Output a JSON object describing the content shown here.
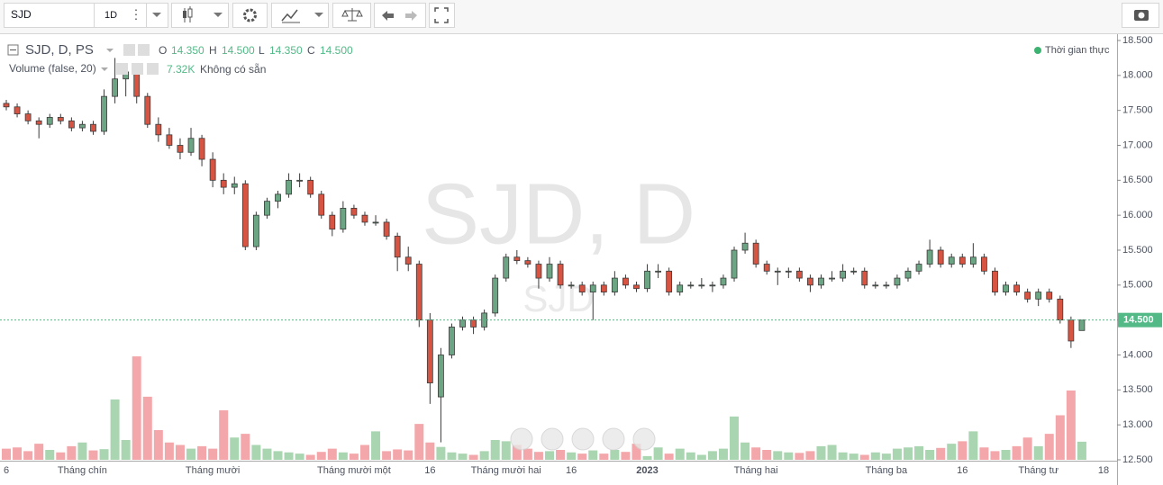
{
  "toolbar": {
    "symbol": "SJD",
    "interval": "1D"
  },
  "legend": {
    "series": "SJD, D, PS",
    "o_label": "O",
    "o": "14.350",
    "h_label": "H",
    "h": "14.500",
    "l_label": "L",
    "l": "14.350",
    "c_label": "C",
    "c": "14.500",
    "volume_title": "Volume (false, 20)",
    "volume_value": "7.32K",
    "volume_ma": "Không có sẵn",
    "realtime": "Thời gian thực"
  },
  "watermark": {
    "main": "SJD, D",
    "small": "SJD"
  },
  "chart_data": {
    "type": "candlestick",
    "categories": [
      "6",
      null,
      null,
      null,
      null,
      null,
      null,
      "Tháng chín",
      null,
      null,
      null,
      null,
      null,
      null,
      null,
      null,
      null,
      null,
      null,
      "Tháng mười",
      null,
      null,
      null,
      null,
      null,
      null,
      null,
      null,
      null,
      null,
      null,
      null,
      "Tháng mười một",
      null,
      null,
      null,
      null,
      null,
      null,
      "16",
      null,
      null,
      null,
      null,
      null,
      null,
      "Tháng mười hai",
      null,
      null,
      null,
      null,
      null,
      "16",
      null,
      null,
      null,
      null,
      null,
      null,
      "2023",
      null,
      null,
      null,
      null,
      null,
      null,
      null,
      null,
      null,
      "Tháng hai",
      null,
      null,
      null,
      null,
      null,
      null,
      null,
      null,
      null,
      null,
      null,
      "Tháng ba",
      null,
      null,
      null,
      null,
      null,
      null,
      "16",
      null,
      null,
      null,
      null,
      null,
      null,
      "Tháng tư",
      null,
      null,
      null,
      null,
      null,
      "18"
    ],
    "ohlc": [
      [
        17.6,
        17.65,
        17.5,
        17.55
      ],
      [
        17.55,
        17.6,
        17.4,
        17.45
      ],
      [
        17.45,
        17.5,
        17.3,
        17.35
      ],
      [
        17.35,
        17.4,
        17.1,
        17.3
      ],
      [
        17.3,
        17.45,
        17.25,
        17.4
      ],
      [
        17.4,
        17.45,
        17.3,
        17.35
      ],
      [
        17.35,
        17.4,
        17.2,
        17.25
      ],
      [
        17.25,
        17.35,
        17.2,
        17.3
      ],
      [
        17.3,
        17.35,
        17.15,
        17.2
      ],
      [
        17.2,
        17.8,
        17.15,
        17.7
      ],
      [
        17.7,
        18.25,
        17.6,
        17.95
      ],
      [
        17.95,
        18.15,
        17.7,
        18.05
      ],
      [
        18.05,
        18.1,
        17.6,
        17.7
      ],
      [
        17.7,
        17.75,
        17.25,
        17.3
      ],
      [
        17.3,
        17.4,
        17.05,
        17.15
      ],
      [
        17.15,
        17.25,
        16.95,
        17.0
      ],
      [
        17.0,
        17.1,
        16.8,
        16.9
      ],
      [
        16.9,
        17.25,
        16.85,
        17.1
      ],
      [
        17.1,
        17.15,
        16.7,
        16.8
      ],
      [
        16.8,
        16.9,
        16.4,
        16.5
      ],
      [
        16.5,
        16.6,
        16.3,
        16.4
      ],
      [
        16.4,
        16.55,
        16.3,
        16.45
      ],
      [
        16.45,
        16.5,
        15.5,
        15.55
      ],
      [
        15.55,
        16.05,
        15.5,
        16.0
      ],
      [
        16.0,
        16.25,
        15.95,
        16.2
      ],
      [
        16.2,
        16.35,
        16.1,
        16.3
      ],
      [
        16.3,
        16.6,
        16.25,
        16.5
      ],
      [
        16.5,
        16.6,
        16.4,
        16.5
      ],
      [
        16.5,
        16.55,
        16.25,
        16.3
      ],
      [
        16.3,
        16.35,
        15.95,
        16.0
      ],
      [
        16.0,
        16.05,
        15.7,
        15.8
      ],
      [
        15.8,
        16.2,
        15.75,
        16.1
      ],
      [
        16.1,
        16.15,
        15.95,
        16.0
      ],
      [
        16.0,
        16.05,
        15.85,
        15.9
      ],
      [
        15.9,
        16.0,
        15.85,
        15.9
      ],
      [
        15.9,
        15.95,
        15.65,
        15.7
      ],
      [
        15.7,
        15.75,
        15.2,
        15.4
      ],
      [
        15.4,
        15.55,
        15.2,
        15.3
      ],
      [
        15.3,
        15.35,
        14.4,
        14.5
      ],
      [
        14.5,
        14.6,
        13.3,
        13.6
      ],
      [
        13.4,
        14.1,
        12.75,
        14.0
      ],
      [
        14.0,
        14.45,
        13.95,
        14.4
      ],
      [
        14.4,
        14.55,
        14.35,
        14.5
      ],
      [
        14.5,
        14.55,
        14.3,
        14.4
      ],
      [
        14.4,
        14.65,
        14.35,
        14.6
      ],
      [
        14.6,
        15.15,
        14.55,
        15.1
      ],
      [
        15.1,
        15.45,
        15.05,
        15.4
      ],
      [
        15.4,
        15.5,
        15.3,
        15.35
      ],
      [
        15.35,
        15.4,
        15.25,
        15.3
      ],
      [
        15.3,
        15.35,
        14.95,
        15.1
      ],
      [
        15.1,
        15.4,
        15.05,
        15.3
      ],
      [
        15.3,
        15.35,
        14.95,
        15.0
      ],
      [
        15.0,
        15.05,
        14.95,
        15.0
      ],
      [
        15.0,
        15.05,
        14.85,
        14.9
      ],
      [
        14.9,
        15.05,
        14.5,
        15.0
      ],
      [
        15.0,
        15.05,
        14.85,
        14.9
      ],
      [
        14.9,
        15.2,
        14.85,
        15.1
      ],
      [
        15.1,
        15.15,
        14.95,
        15.0
      ],
      [
        15.0,
        15.05,
        14.9,
        14.95
      ],
      [
        14.95,
        15.3,
        14.9,
        15.2
      ],
      [
        15.2,
        15.3,
        15.1,
        15.2
      ],
      [
        15.2,
        15.25,
        14.85,
        14.9
      ],
      [
        14.9,
        15.05,
        14.85,
        15.0
      ],
      [
        15.0,
        15.05,
        14.95,
        15.0
      ],
      [
        15.0,
        15.1,
        14.95,
        15.0
      ],
      [
        15.0,
        15.05,
        14.9,
        15.0
      ],
      [
        15.0,
        15.15,
        14.95,
        15.1
      ],
      [
        15.1,
        15.55,
        15.05,
        15.5
      ],
      [
        15.5,
        15.75,
        15.45,
        15.6
      ],
      [
        15.6,
        15.65,
        15.25,
        15.3
      ],
      [
        15.3,
        15.35,
        15.15,
        15.2
      ],
      [
        15.2,
        15.25,
        15.0,
        15.2
      ],
      [
        15.2,
        15.25,
        15.1,
        15.2
      ],
      [
        15.2,
        15.25,
        15.05,
        15.1
      ],
      [
        15.1,
        15.15,
        14.9,
        15.0
      ],
      [
        15.0,
        15.15,
        14.95,
        15.1
      ],
      [
        15.1,
        15.2,
        15.05,
        15.1
      ],
      [
        15.1,
        15.3,
        15.05,
        15.2
      ],
      [
        15.2,
        15.25,
        15.15,
        15.2
      ],
      [
        15.2,
        15.25,
        14.95,
        15.0
      ],
      [
        15.0,
        15.05,
        14.95,
        15.0
      ],
      [
        15.0,
        15.05,
        14.95,
        15.0
      ],
      [
        15.0,
        15.15,
        14.95,
        15.1
      ],
      [
        15.1,
        15.25,
        15.05,
        15.2
      ],
      [
        15.2,
        15.35,
        15.15,
        15.3
      ],
      [
        15.3,
        15.65,
        15.25,
        15.5
      ],
      [
        15.5,
        15.55,
        15.25,
        15.3
      ],
      [
        15.3,
        15.45,
        15.25,
        15.4
      ],
      [
        15.4,
        15.45,
        15.25,
        15.3
      ],
      [
        15.3,
        15.6,
        15.25,
        15.4
      ],
      [
        15.4,
        15.45,
        15.15,
        15.2
      ],
      [
        15.2,
        15.25,
        14.85,
        14.9
      ],
      [
        14.9,
        15.05,
        14.85,
        15.0
      ],
      [
        15.0,
        15.05,
        14.85,
        14.9
      ],
      [
        14.9,
        14.95,
        14.75,
        14.8
      ],
      [
        14.8,
        14.95,
        14.7,
        14.9
      ],
      [
        14.9,
        14.95,
        14.75,
        14.8
      ],
      [
        14.8,
        14.85,
        14.45,
        14.5
      ],
      [
        14.5,
        14.55,
        14.1,
        14.2
      ],
      [
        14.35,
        14.5,
        14.35,
        14.5
      ],
      null,
      null
    ],
    "volume": [
      4500,
      5000,
      3500,
      6500,
      4000,
      3000,
      5500,
      7000,
      3800,
      4300,
      24400,
      8000,
      41800,
      25500,
      12000,
      7000,
      6000,
      4500,
      5500,
      4500,
      20000,
      9000,
      10500,
      6000,
      4500,
      3500,
      3000,
      2500,
      2000,
      3200,
      4500,
      3000,
      2500,
      6000,
      11500,
      3500,
      4200,
      3800,
      14500,
      7000,
      5200,
      3000,
      2500,
      2000,
      3500,
      8000,
      7500,
      6000,
      4500,
      3200,
      3500,
      4000,
      3000,
      2500,
      3800,
      2500,
      4000,
      3200,
      6500,
      1500,
      5000,
      2500,
      4500,
      3000,
      2000,
      3500,
      4500,
      17500,
      7000,
      5000,
      4000,
      3500,
      3000,
      2800,
      3500,
      5500,
      6000,
      3000,
      2500,
      2000,
      3000,
      2500,
      4500,
      5000,
      5500,
      4000,
      4800,
      6500,
      7500,
      11500,
      5000,
      3500,
      4000,
      5500,
      9000,
      5500,
      10500,
      18000,
      28000,
      7320,
      null,
      null
    ],
    "up_color": "#6ba583",
    "down_color": "#d75442",
    "up_volume_color": "#a9d5b1",
    "down_volume_color": "#f4a7aa",
    "ylim": [
      12.5,
      18.5
    ],
    "yticks": [
      {
        "value": 18.5,
        "label": "18.500"
      },
      {
        "value": 18.0,
        "label": "18.000"
      },
      {
        "value": 17.5,
        "label": "17.500"
      },
      {
        "value": 17.0,
        "label": "17.000"
      },
      {
        "value": 16.5,
        "label": "16.500"
      },
      {
        "value": 16.0,
        "label": "16.000"
      },
      {
        "value": 15.5,
        "label": "15.500"
      },
      {
        "value": 15.0,
        "label": "15.000"
      },
      {
        "value": 14.5,
        "label": "14.500"
      },
      {
        "value": 14.0,
        "label": "14.000"
      },
      {
        "value": 13.5,
        "label": "13.500"
      },
      {
        "value": 13.0,
        "label": "13.000"
      },
      {
        "value": 12.5,
        "label": "12.500"
      }
    ],
    "last_price_label": "14.500",
    "last_price_color": "#53b987"
  }
}
